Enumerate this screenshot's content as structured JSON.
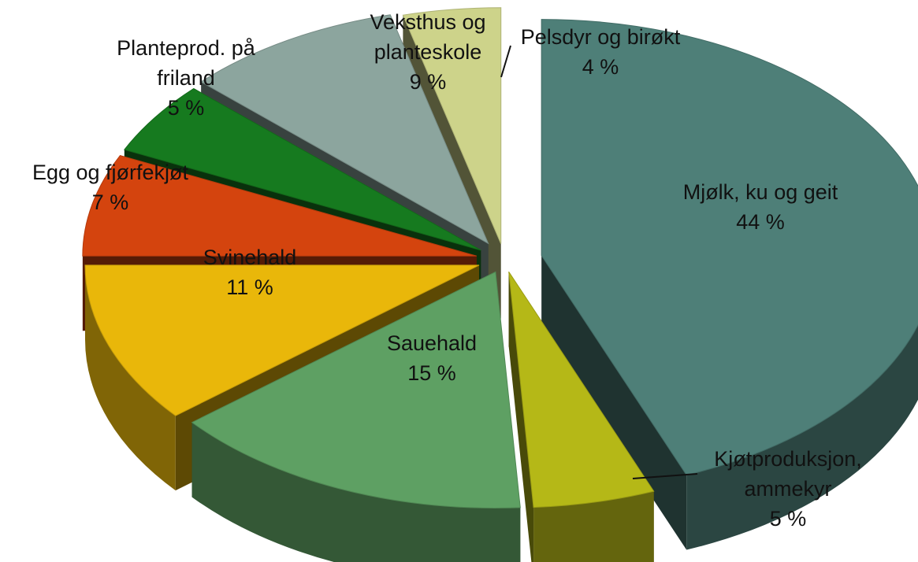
{
  "chart_data": {
    "type": "pie",
    "title": "",
    "slices": [
      {
        "name": "Mjølk, ku og geit",
        "value": 44,
        "value_label": "44 %",
        "color": "#4E7F78"
      },
      {
        "name": "Kjøtproduksjon, ammekyr",
        "value": 5,
        "value_label": "5 %",
        "color": "#B5B817"
      },
      {
        "name": "Sauehald",
        "value": 15,
        "value_label": "15 %",
        "color": "#5EA063"
      },
      {
        "name": "Svinehald",
        "value": 11,
        "value_label": "11 %",
        "color": "#E9B70A"
      },
      {
        "name": "Egg og fjørfekjøt",
        "value": 7,
        "value_label": "7 %",
        "color": "#D4440E"
      },
      {
        "name": "Planteprod. på friland",
        "value": 5,
        "value_label": "5 %",
        "color": "#167A1F"
      },
      {
        "name": "Veksthus og planteskole",
        "value": 9,
        "value_label": "9 %",
        "color": "#8CA59E"
      },
      {
        "name": "Pelsdyr og birøkt",
        "value": 4,
        "value_label": "4 %",
        "color": "#CDD38A"
      }
    ]
  }
}
